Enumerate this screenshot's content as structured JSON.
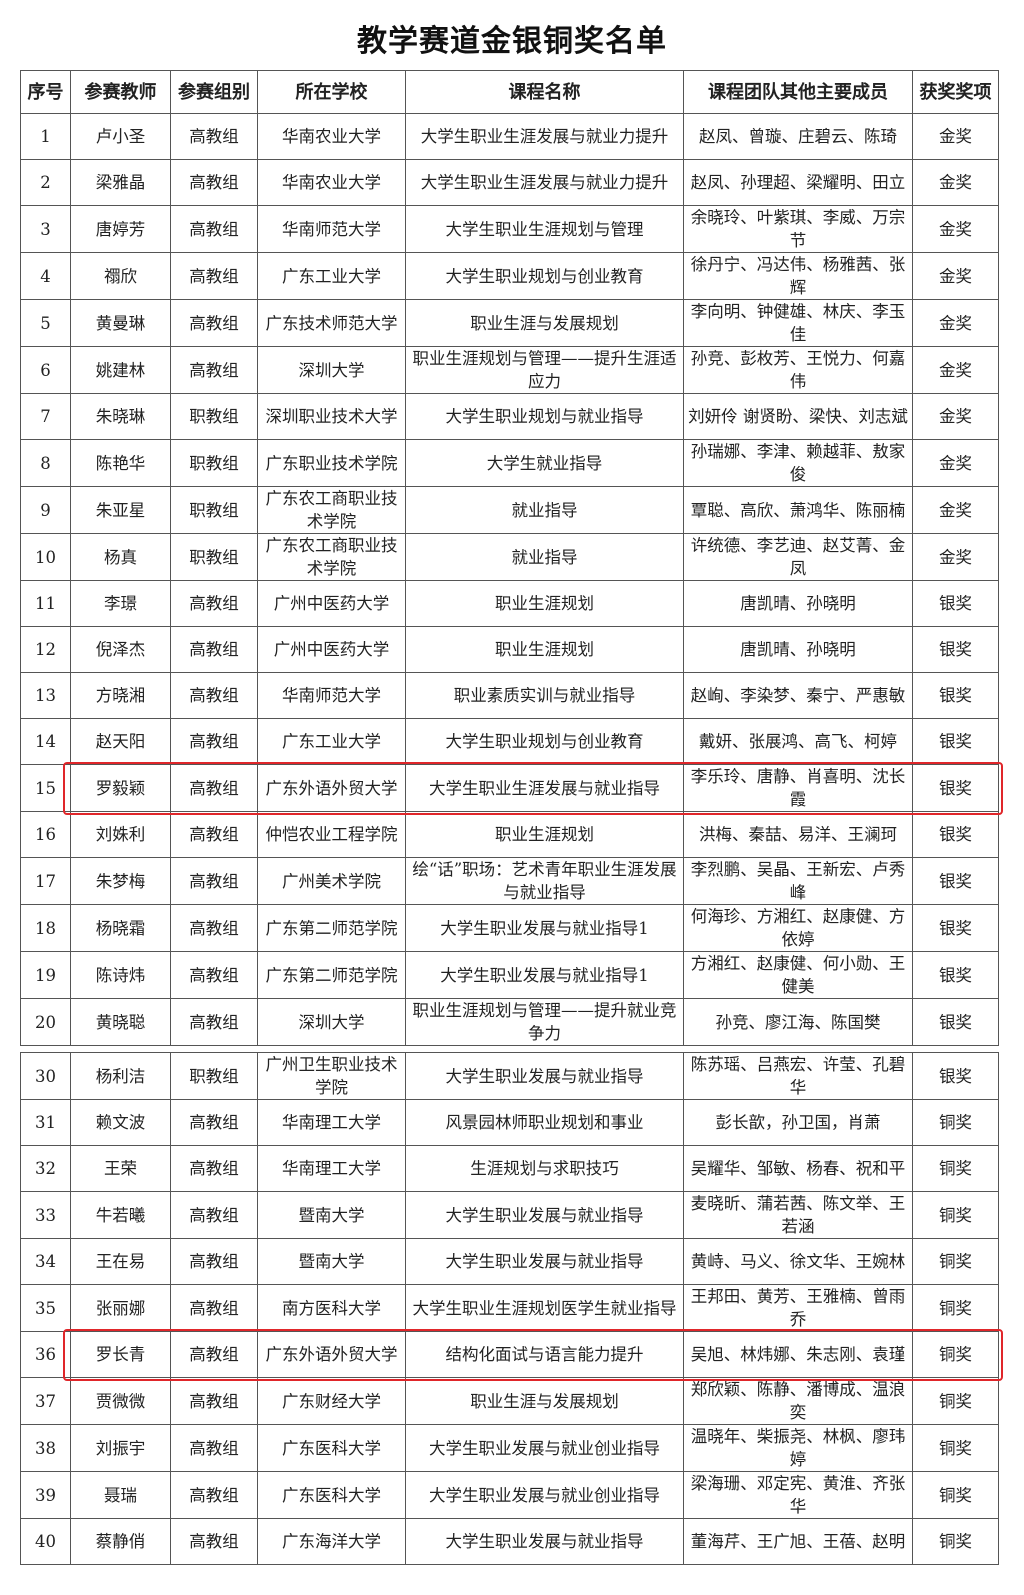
{
  "title": "教学赛道金银铜奖名单",
  "headers": [
    "序号",
    "参赛教师",
    "参赛组别",
    "所在学校",
    "课程名称",
    "课程团队其他主要成员",
    "获奖奖项"
  ],
  "highlight_color": "#e0262a",
  "table1": [
    [
      "1",
      "卢小圣",
      "高教组",
      "华南农业大学",
      "大学生职业生涯发展与就业力提升",
      "赵凤、曾璇、庄碧云、陈琦",
      "金奖"
    ],
    [
      "2",
      "梁雅晶",
      "高教组",
      "华南农业大学",
      "大学生职业生涯发展与就业力提升",
      "赵凤、孙理超、梁耀明、田立",
      "金奖"
    ],
    [
      "3",
      "唐婷芳",
      "高教组",
      "华南师范大学",
      "大学生职业生涯规划与管理",
      "余晓玲、叶紫琪、李威、万宗节",
      "金奖"
    ],
    [
      "4",
      "禤欣",
      "高教组",
      "广东工业大学",
      "大学生职业规划与创业教育",
      "徐丹宁、冯达伟、杨雅茜、张辉",
      "金奖"
    ],
    [
      "5",
      "黄曼琳",
      "高教组",
      "广东技术师范大学",
      "职业生涯与发展规划",
      "李向明、钟健雄、林庆、李玉佳",
      "金奖"
    ],
    [
      "6",
      "姚建林",
      "高教组",
      "深圳大学",
      "职业生涯规划与管理——提升生涯适应力",
      "孙竞、彭枚芳、王悦力、何嘉伟",
      "金奖"
    ],
    [
      "7",
      "朱晓琳",
      "职教组",
      "深圳职业技术大学",
      "大学生职业规划与就业指导",
      "刘妍伶 谢贤盼、梁快、刘志斌",
      "金奖"
    ],
    [
      "8",
      "陈艳华",
      "职教组",
      "广东职业技术学院",
      "大学生就业指导",
      "孙瑞娜、李津、赖越菲、敖家俊",
      "金奖"
    ],
    [
      "9",
      "朱亚星",
      "职教组",
      "广东农工商职业技术学院",
      "就业指导",
      "覃聪、高欣、萧鸿华、陈丽楠",
      "金奖"
    ],
    [
      "10",
      "杨真",
      "职教组",
      "广东农工商职业技术学院",
      "就业指导",
      "许统德、李艺迪、赵艾菁、金凤",
      "金奖"
    ],
    [
      "11",
      "李璟",
      "高教组",
      "广州中医药大学",
      "职业生涯规划",
      "唐凯晴、孙晓明",
      "银奖"
    ],
    [
      "12",
      "倪泽杰",
      "高教组",
      "广州中医药大学",
      "职业生涯规划",
      "唐凯晴、孙晓明",
      "银奖"
    ],
    [
      "13",
      "方晓湘",
      "高教组",
      "华南师范大学",
      "职业素质实训与就业指导",
      "赵峋、李染梦、秦宁、严惠敏",
      "银奖"
    ],
    [
      "14",
      "赵天阳",
      "高教组",
      "广东工业大学",
      "大学生职业规划与创业教育",
      "戴妍、张展鸿、高飞、柯婷",
      "银奖"
    ],
    [
      "15",
      "罗毅颖",
      "高教组",
      "广东外语外贸大学",
      "大学生职业生涯发展与就业指导",
      "李乐玲、唐静、肖喜明、沈长霞",
      "银奖"
    ],
    [
      "16",
      "刘姝利",
      "高教组",
      "仲恺农业工程学院",
      "职业生涯规划",
      "洪梅、秦喆、易洋、王澜珂",
      "银奖"
    ],
    [
      "17",
      "朱梦梅",
      "高教组",
      "广州美术学院",
      "绘“话”职场：艺术青年职业生涯发展与就业指导",
      "李烈鹏、吴晶、王新宏、卢秀峰",
      "银奖"
    ],
    [
      "18",
      "杨晓霜",
      "高教组",
      "广东第二师范学院",
      "大学生职业发展与就业指导1",
      "何海珍、方湘红、赵康健、方依婷",
      "银奖"
    ],
    [
      "19",
      "陈诗炜",
      "高教组",
      "广东第二师范学院",
      "大学生职业发展与就业指导1",
      "方湘红、赵康健、何小勋、王健美",
      "银奖"
    ],
    [
      "20",
      "黄晓聪",
      "高教组",
      "深圳大学",
      "职业生涯规划与管理——提升就业竞争力",
      "孙竞、廖江海、陈国樊",
      "银奖"
    ]
  ],
  "table2": [
    [
      "30",
      "杨利洁",
      "职教组",
      "广州卫生职业技术学院",
      "大学生职业发展与就业指导",
      "陈苏瑶、吕燕宏、许莹、孔碧华",
      "银奖"
    ],
    [
      "31",
      "赖文波",
      "高教组",
      "华南理工大学",
      "风景园林师职业规划和事业",
      "彭长歆，孙卫国，肖萧",
      "铜奖"
    ],
    [
      "32",
      "王荣",
      "高教组",
      "华南理工大学",
      "生涯规划与求职技巧",
      "吴耀华、邹敏、杨春、祝和平",
      "铜奖"
    ],
    [
      "33",
      "牛若曦",
      "高教组",
      "暨南大学",
      "大学生职业发展与就业指导",
      "麦晓昕、蒲若茜、陈文举、王若涵",
      "铜奖"
    ],
    [
      "34",
      "王在易",
      "高教组",
      "暨南大学",
      "大学生职业发展与就业指导",
      "黄峙、马义、徐文华、王婉林",
      "铜奖"
    ],
    [
      "35",
      "张丽娜",
      "高教组",
      "南方医科大学",
      "大学生职业生涯规划医学生就业指导",
      "王邦田、黄芳、王雅楠、曾雨乔",
      "铜奖"
    ],
    [
      "36",
      "罗长青",
      "高教组",
      "广东外语外贸大学",
      "结构化面试与语言能力提升",
      "吴旭、林炜娜、朱志刚、袁瑾",
      "铜奖"
    ],
    [
      "37",
      "贾微微",
      "高教组",
      "广东财经大学",
      "职业生涯与发展规划",
      "郑欣颖、陈静、潘博成、温浪奕",
      "铜奖"
    ],
    [
      "38",
      "刘振宇",
      "高教组",
      "广东医科大学",
      "大学生职业发展与就业创业指导",
      "温晓年、柴振尧、林枫、廖玮婷",
      "铜奖"
    ],
    [
      "39",
      "聂瑞",
      "高教组",
      "广东医科大学",
      "大学生职业发展与就业创业指导",
      "梁海珊、邓定宪、黄淮、齐张华",
      "铜奖"
    ],
    [
      "40",
      "蔡静俏",
      "高教组",
      "广东海洋大学",
      "大学生职业发展与就业指导",
      "董海芹、王广旭、王蓓、赵明",
      "铜奖"
    ]
  ],
  "highlighted_rows": [
    "15",
    "36"
  ]
}
